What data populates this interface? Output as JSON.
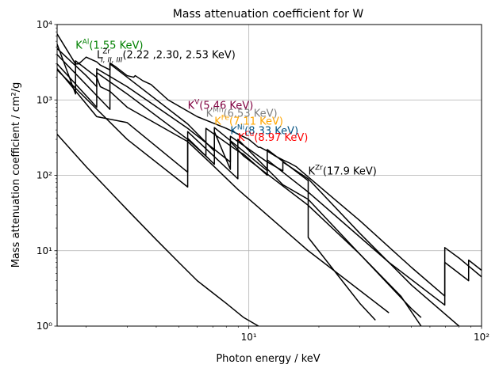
{
  "chart_data": {
    "type": "line",
    "title": "Mass attenuation coefficient for W",
    "xlabel": "Photon energy / keV",
    "ylabel": "Mass attenuation coefficient / cm²/g",
    "x_scale": "log",
    "y_scale": "log",
    "xlim": [
      1.5,
      100
    ],
    "ylim": [
      1,
      10000
    ],
    "grid": "major",
    "x_ticks": [
      {
        "value": 10,
        "label": "10¹"
      },
      {
        "value": 100,
        "label": "10²"
      }
    ],
    "y_ticks": [
      {
        "value": 1,
        "label": "10⁰"
      },
      {
        "value": 10,
        "label": "10¹"
      },
      {
        "value": 100,
        "label": "10²"
      },
      {
        "value": 1000,
        "label": "10³"
      },
      {
        "value": 10000,
        "label": "10⁴"
      }
    ],
    "series": [
      {
        "points": [
          [
            1.5,
            7500
          ],
          [
            1.8,
            3000
          ],
          [
            1.85,
            3000
          ],
          [
            1.9,
            3200
          ],
          [
            2.0,
            3700
          ],
          [
            2.22,
            3200
          ],
          [
            2.3,
            2900
          ],
          [
            2.53,
            2500
          ],
          [
            2.53,
            3100
          ],
          [
            2.7,
            2700
          ],
          [
            3.0,
            2100
          ],
          [
            3.2,
            2000
          ],
          [
            3.25,
            2100
          ],
          [
            3.5,
            1800
          ],
          [
            3.8,
            1600
          ],
          [
            4.5,
            1000
          ],
          [
            6.0,
            600
          ],
          [
            8.0,
            420
          ],
          [
            10.0,
            300
          ],
          [
            11.0,
            235
          ],
          [
            11.2,
            235
          ],
          [
            12.0,
            210
          ],
          [
            13.0,
            180
          ],
          [
            14.0,
            160
          ],
          [
            15.0,
            145
          ],
          [
            16.0,
            130
          ],
          [
            18.0,
            95
          ],
          [
            30.0,
            25
          ],
          [
            50.0,
            6
          ],
          [
            69.5,
            2.5
          ],
          [
            69.5,
            11
          ],
          [
            80.0,
            8
          ],
          [
            100.0,
            4.5
          ]
        ]
      },
      {
        "points": [
          [
            1.5,
            5500
          ],
          [
            1.8,
            1200
          ],
          [
            1.8,
            3300
          ],
          [
            2.22,
            2000
          ],
          [
            2.3,
            1500
          ],
          [
            2.53,
            1300
          ],
          [
            3.0,
            800
          ],
          [
            5.46,
            280
          ],
          [
            7.11,
            130
          ],
          [
            8.97,
            65
          ],
          [
            17.99,
            10
          ],
          [
            40.0,
            1.5
          ]
        ]
      },
      {
        "points": [
          [
            1.5,
            4800
          ],
          [
            2.0,
            2100
          ],
          [
            2.22,
            1500
          ],
          [
            2.22,
            2300
          ],
          [
            3.0,
            1200
          ],
          [
            5.46,
            300
          ],
          [
            6.54,
            180
          ],
          [
            6.54,
            420
          ],
          [
            8.97,
            210
          ],
          [
            9.5,
            190
          ],
          [
            12.0,
            100
          ],
          [
            12.0,
            220
          ],
          [
            17.99,
            85
          ],
          [
            17.99,
            15
          ],
          [
            30.0,
            2.0
          ],
          [
            35.0,
            1.2
          ]
        ]
      },
      {
        "points": [
          [
            1.5,
            4000
          ],
          [
            2.53,
            750
          ],
          [
            2.53,
            3000
          ],
          [
            3.0,
            2000
          ],
          [
            5.46,
            480
          ],
          [
            7.11,
            210
          ],
          [
            7.11,
            430
          ],
          [
            12.0,
            115
          ],
          [
            12.0,
            160
          ],
          [
            17.99,
            60
          ],
          [
            40.0,
            7
          ],
          [
            69.5,
            1.9
          ],
          [
            69.5,
            7
          ],
          [
            88.0,
            4
          ],
          [
            88.0,
            7.5
          ],
          [
            100.0,
            5.5
          ]
        ]
      },
      {
        "points": [
          [
            1.5,
            3000
          ],
          [
            2.22,
            800
          ],
          [
            2.22,
            2600
          ],
          [
            3.0,
            1500
          ],
          [
            5.46,
            420
          ],
          [
            8.33,
            150
          ],
          [
            8.33,
            330
          ],
          [
            12.0,
            150
          ],
          [
            14.0,
            115
          ],
          [
            14.0,
            150
          ],
          [
            17.99,
            90
          ],
          [
            30.0,
            17
          ],
          [
            50.0,
            3.5
          ],
          [
            80.0,
            1.0
          ]
        ]
      },
      {
        "points": [
          [
            1.5,
            2600
          ],
          [
            2.22,
            600
          ],
          [
            3.0,
            500
          ],
          [
            5.46,
            110
          ],
          [
            5.46,
            380
          ],
          [
            8.97,
            90
          ],
          [
            8.97,
            300
          ],
          [
            14.0,
            75
          ],
          [
            17.99,
            48
          ],
          [
            30.0,
            9
          ],
          [
            50.0,
            1.7
          ],
          [
            55.0,
            1.3
          ]
        ]
      },
      {
        "points": [
          [
            1.5,
            2500
          ],
          [
            3.0,
            300
          ],
          [
            5.46,
            70
          ],
          [
            5.46,
            310
          ],
          [
            7.11,
            140
          ],
          [
            7.11,
            380
          ],
          [
            8.33,
            120
          ],
          [
            8.33,
            280
          ],
          [
            9.5,
            180
          ],
          [
            17.99,
            40
          ],
          [
            30.0,
            9
          ],
          [
            45.0,
            2.5
          ],
          [
            55.0,
            1.0
          ]
        ]
      },
      {
        "points": [
          [
            1.5,
            350
          ],
          [
            2.0,
            130
          ],
          [
            3.0,
            35
          ],
          [
            4.0,
            14
          ],
          [
            5.0,
            7
          ],
          [
            6.0,
            4
          ],
          [
            8.0,
            2
          ],
          [
            9.5,
            1.3
          ],
          [
            11.0,
            1.0
          ]
        ]
      }
    ],
    "annotations": [
      {
        "label": "K",
        "sup": "Al",
        "sub": "",
        "rest": "(1.55  KeV)",
        "x": 1.8,
        "y": 4800,
        "color": "#008000"
      },
      {
        "label": "L",
        "sup": "Zr",
        "sub": "I, II, III",
        "rest": "(2.22 ,2.30, 2.53 KeV)",
        "x": 2.22,
        "y": 3600,
        "color": "#000000"
      },
      {
        "label": "K",
        "sup": "V",
        "sub": "",
        "rest": "(5.46 KeV)",
        "x": 5.46,
        "y": 760,
        "color": "#800040"
      },
      {
        "label": "K",
        "sup": "Mn",
        "sub": "",
        "rest": "(6.53 KeV)",
        "x": 6.54,
        "y": 600,
        "color": "#808080"
      },
      {
        "label": "K",
        "sup": "Fe",
        "sub": "",
        "rest": "(7.11 KeV)",
        "x": 7.11,
        "y": 470,
        "color": "#ffa500"
      },
      {
        "label": "K",
        "sup": "Ni",
        "sub": "",
        "rest": "(8.33 KeV)",
        "x": 8.33,
        "y": 350,
        "color": "#005080"
      },
      {
        "label": "K",
        "sup": "Cu",
        "sub": "",
        "rest": "(8.97 KeV)",
        "x": 8.97,
        "y": 285,
        "color": "#ff0000"
      },
      {
        "label": "K",
        "sup": "Zr",
        "sub": "",
        "rest": "(17.9 KeV)",
        "x": 17.99,
        "y": 102,
        "color": "#000000"
      }
    ]
  }
}
